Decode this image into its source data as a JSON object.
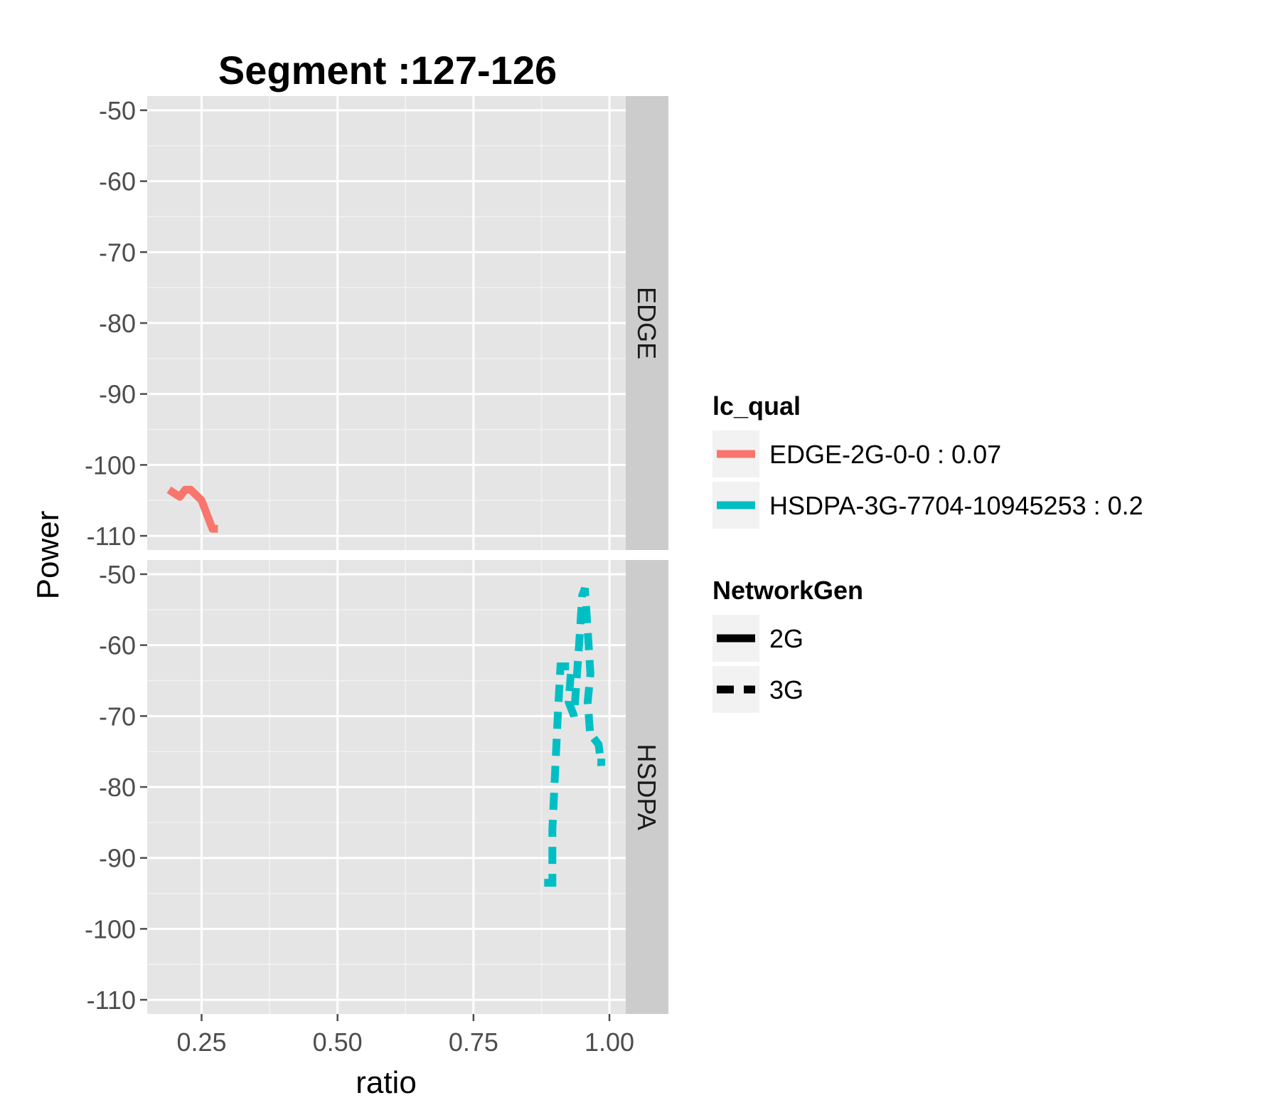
{
  "chart_data": {
    "type": "line",
    "title": "Segment :127-126",
    "xlabel": "ratio",
    "ylabel": "Power",
    "xlim": [
      0.15,
      1.03
    ],
    "ylim": [
      -112,
      -48
    ],
    "x_ticks": [
      0.25,
      0.5,
      0.75,
      1.0
    ],
    "x_tick_labels": [
      "0.25",
      "0.50",
      "0.75",
      "1.00"
    ],
    "y_ticks": [
      -50,
      -60,
      -70,
      -80,
      -90,
      -100,
      -110
    ],
    "y_tick_labels": [
      "-50",
      "-60",
      "-70",
      "-80",
      "-90",
      "-100",
      "-110"
    ],
    "grid": true,
    "facets": [
      {
        "label": "EDGE",
        "series": [
          {
            "name": "EDGE-2G-0-0 : 0.07",
            "network_gen": "2G",
            "color": "#F8766D",
            "x": [
              0.19,
              0.2,
              0.21,
              0.22,
              0.23,
              0.25,
              0.26,
              0.27,
              0.28
            ],
            "y": [
              -103.5,
              -104,
              -104.5,
              -103.5,
              -103.5,
              -105,
              -107,
              -109,
              -109
            ]
          }
        ]
      },
      {
        "label": "HSDPA",
        "series": [
          {
            "name": "HSDPA-3G-7704-10945253 : 0.2",
            "network_gen": "3G",
            "color": "#00BFC4",
            "x": [
              0.88,
              0.895,
              0.895,
              0.9,
              0.905,
              0.91,
              0.915,
              0.93,
              0.925,
              0.935,
              0.945,
              0.95,
              0.955,
              0.96,
              0.965,
              0.96,
              0.965,
              0.97,
              0.975,
              0.98,
              0.985,
              0.985
            ],
            "y": [
              -93.5,
              -93.5,
              -86,
              -78,
              -70,
              -63,
              -63,
              -63,
              -68,
              -70,
              -59,
              -53,
              -52,
              -58,
              -64,
              -68,
              -73,
              -73,
              -73.5,
              -74,
              -77,
              -76
            ]
          }
        ]
      }
    ],
    "legends": [
      {
        "title": "lc_qual",
        "items": [
          {
            "label": "EDGE-2G-0-0 : 0.07",
            "color": "#F8766D",
            "style": "solid"
          },
          {
            "label": "HSDPA-3G-7704-10945253 : 0.2",
            "color": "#00BFC4",
            "style": "solid"
          }
        ]
      },
      {
        "title": "NetworkGen",
        "items": [
          {
            "label": "2G",
            "color": "#000000",
            "style": "solid"
          },
          {
            "label": "3G",
            "color": "#000000",
            "style": "dashed"
          }
        ]
      }
    ],
    "legend_position": "right",
    "panel_background": "#E5E5E5",
    "strip_background": "#CCCCCC",
    "grid_color": "#FFFFFF"
  }
}
